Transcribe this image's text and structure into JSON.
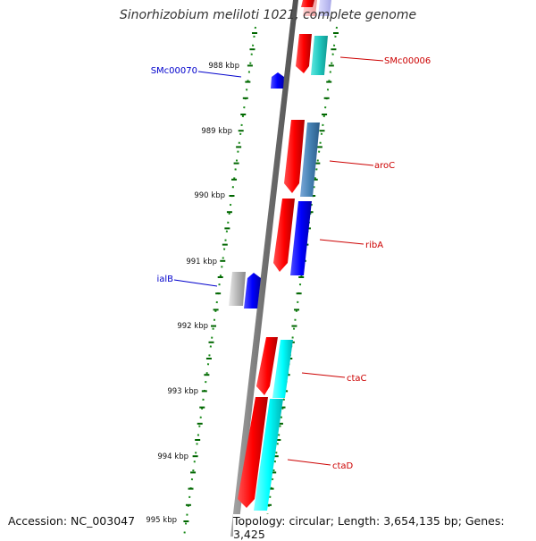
{
  "title": "Sinorhizobium meliloti 1021, complete genome",
  "footer": {
    "accession": "Accession: NC_003047",
    "summary": "Topology: circular; Length: 3,654,135 bp; Genes: 3,425"
  },
  "ruler": {
    "ticks": [
      "988 kbp",
      "989 kbp",
      "990 kbp",
      "991 kbp",
      "992 kbp",
      "993 kbp",
      "994 kbp",
      "995 kbp"
    ]
  },
  "gene_labels": {
    "reverse": [
      "SMc00070",
      "ialB"
    ],
    "forward": [
      "SMc00006",
      "aroC",
      "ribA",
      "ctaC",
      "ctaD"
    ]
  },
  "colors": {
    "forward_label": "#cc0000",
    "reverse_label": "#0000cc",
    "tick": "#006600",
    "backbone": "#808080",
    "cds": "#ff0000",
    "cyan_gene": "#00e0e0",
    "steel_gene": "#4682b4",
    "blue_gene": "#0000ff",
    "gray_gene": "#b0b0b0"
  }
}
